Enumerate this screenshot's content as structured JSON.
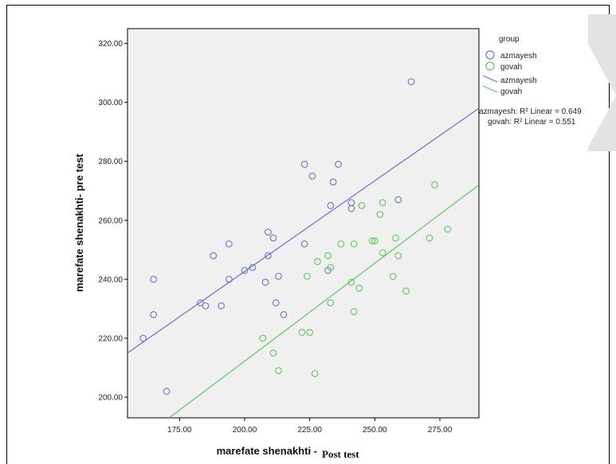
{
  "colors": {
    "plot_bg": "#f0f0f0",
    "azmayesh": "#6a74c8",
    "govah": "#5fc75f",
    "axis": "#000000",
    "tab_gray": "#e3e3e3"
  },
  "chart_data": {
    "type": "scatter",
    "xlabel": "marefate shenakhti -",
    "xlabel_extra": "Post test",
    "ylabel": "marefate shenakhti- pre test",
    "xlim": [
      155,
      290
    ],
    "ylim": [
      193,
      325
    ],
    "x_ticks": [
      175,
      200,
      225,
      250,
      275
    ],
    "x_tick_labels": [
      "175.00",
      "200.00",
      "225.00",
      "250.00",
      "275.00"
    ],
    "y_ticks": [
      200,
      220,
      240,
      260,
      280,
      300,
      320
    ],
    "y_tick_labels": [
      "200.00",
      "220.00",
      "240.00",
      "260.00",
      "280.00",
      "300.00",
      "320.00"
    ],
    "grid": false,
    "legend": {
      "title": "group",
      "position": "right",
      "entries": [
        {
          "label": "azmayesh",
          "kind": "marker",
          "series": "azmayesh"
        },
        {
          "label": "govah",
          "kind": "marker",
          "series": "govah"
        },
        {
          "label": "azmayesh",
          "kind": "line",
          "series": "azmayesh"
        },
        {
          "label": "govah",
          "kind": "line",
          "series": "govah"
        }
      ]
    },
    "annotations": [
      "azmayesh: R² Linear = 0.649",
      "govah: R² Linear = 0.551"
    ],
    "series": [
      {
        "name": "azmayesh",
        "color": "#6a74c8",
        "points": [
          [
            161,
            220
          ],
          [
            165,
            228
          ],
          [
            165,
            240
          ],
          [
            170,
            202
          ],
          [
            183,
            232
          ],
          [
            185,
            231
          ],
          [
            188,
            248
          ],
          [
            191,
            231
          ],
          [
            194,
            240
          ],
          [
            194,
            252
          ],
          [
            200,
            243
          ],
          [
            203,
            244
          ],
          [
            208,
            239
          ],
          [
            209,
            256
          ],
          [
            209,
            248
          ],
          [
            211,
            254
          ],
          [
            212,
            232
          ],
          [
            213,
            241
          ],
          [
            215,
            228
          ],
          [
            223,
            279
          ],
          [
            223,
            252
          ],
          [
            226,
            275
          ],
          [
            232,
            243
          ],
          [
            233,
            265
          ],
          [
            234,
            273
          ],
          [
            236,
            279
          ],
          [
            241,
            266
          ],
          [
            241,
            264
          ],
          [
            259,
            267
          ],
          [
            264,
            307
          ]
        ],
        "fit": [
          [
            155,
            215
          ],
          [
            290,
            298
          ]
        ]
      },
      {
        "name": "govah",
        "color": "#5fc75f",
        "points": [
          [
            207,
            220
          ],
          [
            211,
            215
          ],
          [
            213,
            209
          ],
          [
            222,
            222
          ],
          [
            224,
            241
          ],
          [
            225,
            222
          ],
          [
            227,
            208
          ],
          [
            228,
            246
          ],
          [
            232,
            248
          ],
          [
            233,
            244
          ],
          [
            233,
            232
          ],
          [
            237,
            252
          ],
          [
            241,
            239
          ],
          [
            242,
            229
          ],
          [
            242,
            252
          ],
          [
            244,
            237
          ],
          [
            245,
            265
          ],
          [
            249,
            253
          ],
          [
            250,
            253
          ],
          [
            252,
            262
          ],
          [
            253,
            249
          ],
          [
            253,
            266
          ],
          [
            257,
            241
          ],
          [
            258,
            254
          ],
          [
            259,
            248
          ],
          [
            262,
            236
          ],
          [
            271,
            254
          ],
          [
            273,
            272
          ],
          [
            278,
            257
          ]
        ],
        "fit": [
          [
            171,
            193
          ],
          [
            290,
            272
          ]
        ]
      }
    ]
  }
}
